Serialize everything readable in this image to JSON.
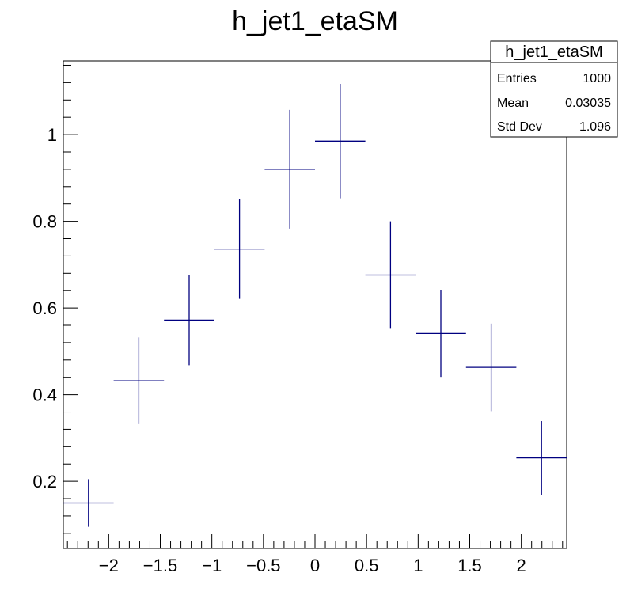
{
  "chart_data": {
    "type": "scatter",
    "title": "h_jet1_etaSM",
    "xlabel": "",
    "ylabel": "",
    "xlim": [
      -2.44,
      2.44
    ],
    "ylim": [
      0.045,
      1.17
    ],
    "x_ticks": [
      -2,
      -1.5,
      -1,
      -0.5,
      0,
      0.5,
      1,
      1.5,
      2
    ],
    "x_tick_labels": [
      "−2",
      "−1.5",
      "−1",
      "−0.5",
      "0",
      "0.5",
      "1",
      "1.5",
      "2"
    ],
    "y_ticks": [
      0.2,
      0.4,
      0.6,
      0.8,
      1
    ],
    "y_tick_labels": [
      "0.2",
      "0.4",
      "0.6",
      "0.8",
      "1"
    ],
    "grid": false,
    "color": "#000080",
    "series": [
      {
        "x": [
          -2.196,
          -1.708,
          -1.22,
          -0.732,
          -0.244,
          0.244,
          0.732,
          1.22,
          1.708,
          2.196
        ],
        "y": [
          0.15,
          0.432,
          0.572,
          0.736,
          0.92,
          0.985,
          0.676,
          0.541,
          0.463,
          0.254
        ],
        "y_err": [
          0.055,
          0.1,
          0.104,
          0.115,
          0.137,
          0.132,
          0.124,
          0.1,
          0.101,
          0.085
        ],
        "x_halfwidth": 0.244
      }
    ]
  },
  "stats_box": {
    "title": "h_jet1_etaSM",
    "rows": [
      {
        "label": "Entries",
        "value": "1000"
      },
      {
        "label": "Mean",
        "value": "0.03035"
      },
      {
        "label": "Std Dev",
        "value": "1.096"
      }
    ]
  }
}
